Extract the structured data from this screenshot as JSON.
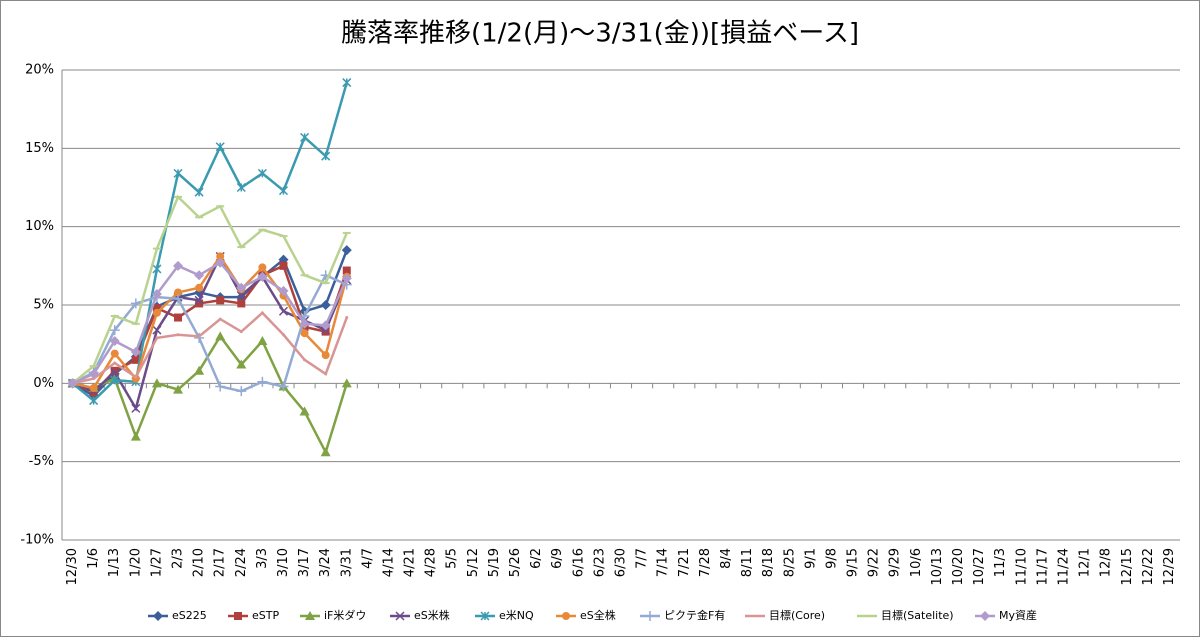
{
  "chart_data": {
    "type": "line",
    "title": "騰落率推移(1/2(月)～3/31(金))[損益ベース]",
    "categories": [
      "12/30",
      "1/6",
      "1/13",
      "1/20",
      "1/27",
      "2/3",
      "2/10",
      "2/17",
      "2/24",
      "3/3",
      "3/10",
      "3/17",
      "3/24",
      "3/31",
      "4/7",
      "4/14",
      "4/21",
      "4/28",
      "5/5",
      "5/12",
      "5/19",
      "5/26",
      "6/2",
      "6/9",
      "6/16",
      "6/23",
      "6/30",
      "7/7",
      "7/14",
      "7/21",
      "7/28",
      "8/4",
      "8/11",
      "8/18",
      "8/25",
      "9/1",
      "9/8",
      "9/15",
      "9/22",
      "9/29",
      "10/6",
      "10/13",
      "10/20",
      "10/27",
      "11/3",
      "11/10",
      "11/17",
      "11/24",
      "12/1",
      "12/8",
      "12/15",
      "12/22",
      "12/29"
    ],
    "ylim": [
      -10,
      20
    ],
    "yticks": [
      {
        "value": -10,
        "label": "-10%"
      },
      {
        "value": -5,
        "label": "-5%"
      },
      {
        "value": 0,
        "label": "0%"
      },
      {
        "value": 5,
        "label": "5%"
      },
      {
        "value": 10,
        "label": "10%"
      },
      {
        "value": 15,
        "label": "15%"
      },
      {
        "value": 20,
        "label": "20%"
      }
    ],
    "grid": true,
    "legend": "bottom",
    "series": [
      {
        "name": "eS225",
        "color": "#3a5f9a",
        "marker": "diamond",
        "values": [
          0,
          -0.8,
          0.6,
          1.7,
          4.9,
          5.5,
          5.8,
          5.5,
          5.5,
          6.8,
          7.9,
          4.6,
          5.0,
          8.5,
          null,
          null,
          null,
          null,
          null,
          null,
          null,
          null,
          null,
          null,
          null,
          null,
          null,
          null,
          null,
          null,
          null,
          null,
          null,
          null,
          null,
          null,
          null,
          null,
          null,
          null,
          null,
          null,
          null,
          null,
          null,
          null,
          null,
          null,
          null,
          null,
          null,
          null,
          null
        ]
      },
      {
        "name": "eSTP",
        "color": "#b0403c",
        "marker": "square",
        "values": [
          0,
          -0.6,
          0.8,
          1.5,
          4.8,
          4.2,
          5.1,
          5.3,
          5.1,
          6.9,
          7.5,
          3.6,
          3.3,
          7.2,
          null,
          null,
          null,
          null,
          null,
          null,
          null,
          null,
          null,
          null,
          null,
          null,
          null,
          null,
          null,
          null,
          null,
          null,
          null,
          null,
          null,
          null,
          null,
          null,
          null,
          null,
          null,
          null,
          null,
          null,
          null,
          null,
          null,
          null,
          null,
          null,
          null,
          null,
          null
        ]
      },
      {
        "name": "iF米ダウ",
        "color": "#7fa244",
        "marker": "triangle",
        "values": [
          0,
          -0.3,
          0.3,
          -3.4,
          0,
          -0.4,
          0.8,
          3.0,
          1.2,
          2.7,
          -0.2,
          -1.8,
          -4.4,
          0,
          null,
          null,
          null,
          null,
          null,
          null,
          null,
          null,
          null,
          null,
          null,
          null,
          null,
          null,
          null,
          null,
          null,
          null,
          null,
          null,
          null,
          null,
          null,
          null,
          null,
          null,
          null,
          null,
          null,
          null,
          null,
          null,
          null,
          null,
          null,
          null,
          null,
          null,
          null
        ]
      },
      {
        "name": "eS米株",
        "color": "#6b4c8a",
        "marker": "x",
        "values": [
          0,
          -0.5,
          0.7,
          -1.6,
          3.4,
          5.5,
          5.3,
          8.1,
          5.6,
          6.8,
          4.6,
          4.0,
          3.4,
          6.6,
          null,
          null,
          null,
          null,
          null,
          null,
          null,
          null,
          null,
          null,
          null,
          null,
          null,
          null,
          null,
          null,
          null,
          null,
          null,
          null,
          null,
          null,
          null,
          null,
          null,
          null,
          null,
          null,
          null,
          null,
          null,
          null,
          null,
          null,
          null,
          null,
          null,
          null,
          null
        ]
      },
      {
        "name": "e米NQ",
        "color": "#3a9ab0",
        "marker": "star",
        "values": [
          0,
          -1.1,
          0.2,
          0.1,
          7.3,
          13.4,
          12.2,
          15.1,
          12.5,
          13.4,
          12.3,
          15.7,
          14.5,
          19.2,
          null,
          null,
          null,
          null,
          null,
          null,
          null,
          null,
          null,
          null,
          null,
          null,
          null,
          null,
          null,
          null,
          null,
          null,
          null,
          null,
          null,
          null,
          null,
          null,
          null,
          null,
          null,
          null,
          null,
          null,
          null,
          null,
          null,
          null,
          null,
          null,
          null,
          null,
          null
        ]
      },
      {
        "name": "eS全株",
        "color": "#e8893a",
        "marker": "circle",
        "values": [
          0,
          -0.3,
          1.9,
          0.3,
          4.5,
          5.8,
          6.1,
          8.1,
          6.0,
          7.4,
          5.6,
          3.2,
          1.8,
          6.8,
          null,
          null,
          null,
          null,
          null,
          null,
          null,
          null,
          null,
          null,
          null,
          null,
          null,
          null,
          null,
          null,
          null,
          null,
          null,
          null,
          null,
          null,
          null,
          null,
          null,
          null,
          null,
          null,
          null,
          null,
          null,
          null,
          null,
          null,
          null,
          null,
          null,
          null,
          null
        ]
      },
      {
        "name": "ピクテ金F有",
        "color": "#93abd4",
        "marker": "plus",
        "values": [
          0,
          0.7,
          3.4,
          5.1,
          5.5,
          5.4,
          2.9,
          -0.2,
          -0.5,
          0.1,
          -0.2,
          4.3,
          6.9,
          6.3,
          null,
          null,
          null,
          null,
          null,
          null,
          null,
          null,
          null,
          null,
          null,
          null,
          null,
          null,
          null,
          null,
          null,
          null,
          null,
          null,
          null,
          null,
          null,
          null,
          null,
          null,
          null,
          null,
          null,
          null,
          null,
          null,
          null,
          null,
          null,
          null,
          null,
          null,
          null
        ]
      },
      {
        "name": "目標(Core)",
        "color": "#d99594",
        "marker": "none",
        "values": [
          0,
          0.3,
          1.3,
          0.4,
          2.9,
          3.1,
          3.0,
          4.1,
          3.3,
          4.5,
          3.1,
          1.5,
          0.6,
          4.2,
          null,
          null,
          null,
          null,
          null,
          null,
          null,
          null,
          null,
          null,
          null,
          null,
          null,
          null,
          null,
          null,
          null,
          null,
          null,
          null,
          null,
          null,
          null,
          null,
          null,
          null,
          null,
          null,
          null,
          null,
          null,
          null,
          null,
          null,
          null,
          null,
          null,
          null,
          null
        ]
      },
      {
        "name": "目標(Satelite)",
        "color": "#b9d38f",
        "marker": "dash",
        "values": [
          0,
          1.1,
          4.3,
          3.8,
          8.6,
          11.9,
          10.6,
          11.3,
          8.7,
          9.8,
          9.4,
          6.9,
          6.4,
          9.6,
          null,
          null,
          null,
          null,
          null,
          null,
          null,
          null,
          null,
          null,
          null,
          null,
          null,
          null,
          null,
          null,
          null,
          null,
          null,
          null,
          null,
          null,
          null,
          null,
          null,
          null,
          null,
          null,
          null,
          null,
          null,
          null,
          null,
          null,
          null,
          null,
          null,
          null,
          null
        ]
      },
      {
        "name": "My資産",
        "color": "#b09ccc",
        "marker": "diamond",
        "values": [
          0,
          0.6,
          2.7,
          2.0,
          5.7,
          7.5,
          6.9,
          7.7,
          6.1,
          6.8,
          5.9,
          3.8,
          3.7,
          6.7,
          null,
          null,
          null,
          null,
          null,
          null,
          null,
          null,
          null,
          null,
          null,
          null,
          null,
          null,
          null,
          null,
          null,
          null,
          null,
          null,
          null,
          null,
          null,
          null,
          null,
          null,
          null,
          null,
          null,
          null,
          null,
          null,
          null,
          null,
          null,
          null,
          null,
          null,
          null
        ]
      }
    ]
  }
}
